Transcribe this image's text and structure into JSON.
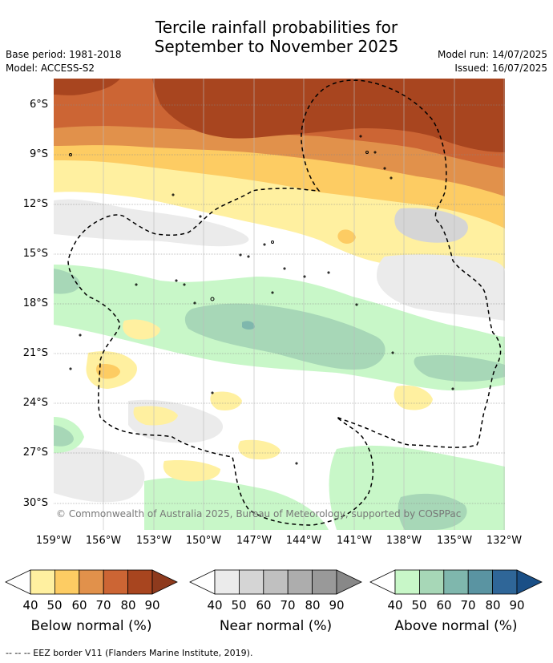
{
  "header": {
    "title_line1": "Tercile rainfall probabilities for",
    "title_line2": "September to November 2025",
    "base_period": "Base period: 1981-2018",
    "model": "Model: ACCESS-S2",
    "model_run": "Model run: 14/07/2025",
    "issued": "Issued: 16/07/2025"
  },
  "map": {
    "lat_labels": [
      "6°S",
      "9°S",
      "12°S",
      "15°S",
      "18°S",
      "21°S",
      "24°S",
      "27°S",
      "30°S"
    ],
    "lon_labels": [
      "159°W",
      "156°W",
      "153°W",
      "150°W",
      "147°W",
      "144°W",
      "141°W",
      "138°W",
      "135°W",
      "132°W"
    ],
    "copyright": "© Commonwealth of Australia 2025, Bureau of Meteorology, supported by COSPPac",
    "colors": {
      "below": [
        "#fff0a0",
        "#fdcc63",
        "#e1914b",
        "#cc6534",
        "#a8451f"
      ],
      "near": [
        "#ebebeb",
        "#d5d5d5",
        "#c0c0c0",
        "#adadad",
        "#999999"
      ],
      "above": [
        "#c8f7c8",
        "#a7d7b7",
        "#7fb7ad",
        "#5a94a2",
        "#2f6698"
      ]
    }
  },
  "colorbars": [
    {
      "label": "Below normal (%)",
      "ticks": [
        "40",
        "50",
        "60",
        "70",
        "80",
        "90"
      ]
    },
    {
      "label": "Near normal (%)",
      "ticks": [
        "40",
        "50",
        "60",
        "70",
        "80",
        "90"
      ]
    },
    {
      "label": "Above normal (%)",
      "ticks": [
        "40",
        "50",
        "60",
        "70",
        "80",
        "90"
      ]
    }
  ],
  "footer": "--  --  -- EEZ border V11 (Flanders Marine Institute, 2019)."
}
